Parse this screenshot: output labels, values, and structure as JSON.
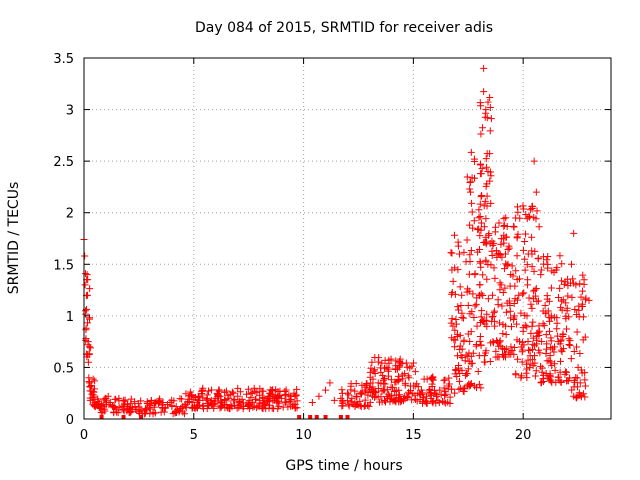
{
  "chart_data": {
    "type": "scatter",
    "title": "Day 084 of 2015, SRMTID for receiver adis",
    "xlabel": "GPS time / hours",
    "ylabel": "SRMTID / TECUs",
    "xlim": [
      0,
      24
    ],
    "ylim": [
      0,
      3.5
    ],
    "xticks": [
      0,
      5,
      10,
      15,
      20
    ],
    "yticks": [
      0,
      0.5,
      1,
      1.5,
      2,
      2.5,
      3,
      3.5
    ],
    "xtick_labels": [
      "0",
      "5",
      "10",
      "15",
      "20"
    ],
    "ytick_labels": [
      "0",
      "0.5",
      "1",
      "1.5",
      "2",
      "2.5",
      "3",
      "3.5"
    ],
    "grid": true,
    "marker": "+",
    "marker_color": "#ff0000",
    "series": [
      {
        "name": "SRMTID",
        "points": [
          [
            0.0,
            1.74
          ],
          [
            0.03,
            1.58
          ],
          [
            0.05,
            1.3
          ],
          [
            0.07,
            1.05
          ],
          [
            0.1,
            0.88
          ],
          [
            0.12,
            1.35
          ],
          [
            0.14,
            1.4
          ],
          [
            0.16,
            1.2
          ],
          [
            0.18,
            0.72
          ],
          [
            0.2,
            0.55
          ],
          [
            0.22,
            0.4
          ],
          [
            0.25,
            0.35
          ],
          [
            0.28,
            0.31
          ],
          [
            0.32,
            0.27
          ],
          [
            0.36,
            0.24
          ],
          [
            0.4,
            0.21
          ],
          [
            0.45,
            0.19
          ],
          [
            0.5,
            0.16
          ],
          [
            0.55,
            0.14
          ],
          [
            0.6,
            0.13
          ],
          [
            0.7,
            0.15
          ],
          [
            0.8,
            0.13
          ],
          [
            0.9,
            0.12
          ],
          [
            1.0,
            0.2
          ],
          [
            1.1,
            0.22
          ],
          [
            1.2,
            0.16
          ],
          [
            1.3,
            0.13
          ],
          [
            1.4,
            0.12
          ],
          [
            1.6,
            0.11
          ],
          [
            1.8,
            0.12
          ],
          [
            2.0,
            0.1
          ],
          [
            2.2,
            0.11
          ],
          [
            2.4,
            0.09
          ],
          [
            2.5,
            0.07
          ],
          [
            2.6,
            0.08
          ],
          [
            2.8,
            0.1
          ],
          [
            3.0,
            0.13
          ],
          [
            3.2,
            0.15
          ],
          [
            3.4,
            0.17
          ],
          [
            3.6,
            0.16
          ],
          [
            3.8,
            0.14
          ],
          [
            4.0,
            0.13
          ],
          [
            4.2,
            0.12
          ],
          [
            4.4,
            0.1
          ],
          [
            4.6,
            0.14
          ],
          [
            4.8,
            0.17
          ],
          [
            5.0,
            0.19
          ],
          [
            5.2,
            0.22
          ],
          [
            5.4,
            0.27
          ],
          [
            5.6,
            0.2
          ],
          [
            5.8,
            0.18
          ],
          [
            6.0,
            0.2
          ],
          [
            6.2,
            0.22
          ],
          [
            6.4,
            0.18
          ],
          [
            6.6,
            0.2
          ],
          [
            6.8,
            0.25
          ],
          [
            7.0,
            0.22
          ],
          [
            7.2,
            0.19
          ],
          [
            7.4,
            0.24
          ],
          [
            7.6,
            0.21
          ],
          [
            7.8,
            0.19
          ],
          [
            8.0,
            0.23
          ],
          [
            8.2,
            0.2
          ],
          [
            8.4,
            0.22
          ],
          [
            8.6,
            0.18
          ],
          [
            8.8,
            0.21
          ],
          [
            9.0,
            0.2
          ],
          [
            9.2,
            0.23
          ],
          [
            9.4,
            0.19
          ],
          [
            9.6,
            0.22
          ],
          [
            10.4,
            0.16
          ],
          [
            10.7,
            0.22
          ],
          [
            11.0,
            0.28
          ],
          [
            11.2,
            0.35
          ],
          [
            11.4,
            0.18
          ],
          [
            11.7,
            0.2
          ],
          [
            12.0,
            0.25
          ],
          [
            12.2,
            0.2
          ],
          [
            12.4,
            0.22
          ],
          [
            12.6,
            0.25
          ],
          [
            12.8,
            0.28
          ],
          [
            13.0,
            0.3
          ],
          [
            13.2,
            0.27
          ],
          [
            13.4,
            0.35
          ],
          [
            13.6,
            0.42
          ],
          [
            13.8,
            0.5
          ],
          [
            14.0,
            0.38
          ],
          [
            14.2,
            0.48
          ],
          [
            14.4,
            0.58
          ],
          [
            14.6,
            0.44
          ],
          [
            14.8,
            0.4
          ],
          [
            15.0,
            0.32
          ],
          [
            15.2,
            0.25
          ],
          [
            15.4,
            0.24
          ],
          [
            15.6,
            0.22
          ],
          [
            15.8,
            0.2
          ],
          [
            16.0,
            0.25
          ],
          [
            16.2,
            0.28
          ],
          [
            16.4,
            0.3
          ],
          [
            16.6,
            0.32
          ],
          [
            16.8,
            0.9
          ],
          [
            17.0,
            0.8
          ],
          [
            17.1,
            1.6
          ],
          [
            17.2,
            1.2
          ],
          [
            17.3,
            0.75
          ],
          [
            17.4,
            0.62
          ],
          [
            17.5,
            1.1
          ],
          [
            17.6,
            2.2
          ],
          [
            17.7,
            1.85
          ],
          [
            17.8,
            1.4
          ],
          [
            17.9,
            0.9
          ],
          [
            18.0,
            1.2
          ],
          [
            18.1,
            1.9
          ],
          [
            18.2,
            3.4
          ],
          [
            18.3,
            3.0
          ],
          [
            18.4,
            2.4
          ],
          [
            18.5,
            1.7
          ],
          [
            18.6,
            1.2
          ],
          [
            18.7,
            0.9
          ],
          [
            18.8,
            1.6
          ],
          [
            18.9,
            1.9
          ],
          [
            19.0,
            1.3
          ],
          [
            19.2,
            0.9
          ],
          [
            19.4,
            1.1
          ],
          [
            19.6,
            1.0
          ],
          [
            19.8,
            1.2
          ],
          [
            20.0,
            0.85
          ],
          [
            20.2,
            1.3
          ],
          [
            20.4,
            1.6
          ],
          [
            20.5,
            2.5
          ],
          [
            20.6,
            2.2
          ],
          [
            20.8,
            1.4
          ],
          [
            21.0,
            1.1
          ],
          [
            21.2,
            0.85
          ],
          [
            21.4,
            0.65
          ],
          [
            21.6,
            0.75
          ],
          [
            21.8,
            0.8
          ],
          [
            22.0,
            1.05
          ],
          [
            22.2,
            1.5
          ],
          [
            22.3,
            1.8
          ],
          [
            22.4,
            1.3
          ],
          [
            22.5,
            0.5
          ],
          [
            22.6,
            0.35
          ],
          [
            22.8,
            0.45
          ],
          [
            23.0,
            1.15
          ]
        ]
      }
    ],
    "clusters": [
      {
        "x": [
          0.0,
          0.3
        ],
        "y": [
          0.6,
          1.45
        ],
        "n": 20
      },
      {
        "x": [
          0.2,
          0.6
        ],
        "y": [
          0.12,
          0.42
        ],
        "n": 18
      },
      {
        "x": [
          0.6,
          2.4
        ],
        "y": [
          0.06,
          0.2
        ],
        "n": 50
      },
      {
        "x": [
          2.4,
          4.6
        ],
        "y": [
          0.05,
          0.2
        ],
        "n": 55
      },
      {
        "x": [
          4.6,
          9.8
        ],
        "y": [
          0.1,
          0.3
        ],
        "n": 200
      },
      {
        "x": [
          11.7,
          13.0
        ],
        "y": [
          0.12,
          0.36
        ],
        "n": 45
      },
      {
        "x": [
          13.0,
          15.1
        ],
        "y": [
          0.16,
          0.6
        ],
        "n": 120
      },
      {
        "x": [
          15.1,
          16.7
        ],
        "y": [
          0.15,
          0.42
        ],
        "n": 55
      },
      {
        "x": [
          16.7,
          17.4
        ],
        "y": [
          0.25,
          1.8
        ],
        "n": 60
      },
      {
        "x": [
          17.4,
          18.1
        ],
        "y": [
          0.3,
          2.6
        ],
        "n": 70
      },
      {
        "x": [
          18.0,
          18.6
        ],
        "y": [
          0.55,
          3.2
        ],
        "n": 80
      },
      {
        "x": [
          18.6,
          19.6
        ],
        "y": [
          0.6,
          2.0
        ],
        "n": 90
      },
      {
        "x": [
          19.6,
          20.8
        ],
        "y": [
          0.4,
          2.1
        ],
        "n": 110
      },
      {
        "x": [
          20.8,
          22.0
        ],
        "y": [
          0.35,
          1.6
        ],
        "n": 100
      },
      {
        "x": [
          22.0,
          22.9
        ],
        "y": [
          0.2,
          1.4
        ],
        "n": 60
      }
    ],
    "floor_points": [
      [
        0.8,
        0.0
      ],
      [
        1.8,
        0.0
      ],
      [
        2.6,
        0.0
      ],
      [
        9.8,
        0.0
      ],
      [
        10.3,
        0.0
      ],
      [
        10.6,
        0.0
      ],
      [
        11.0,
        0.0
      ],
      [
        11.7,
        0.0
      ],
      [
        12.0,
        0.0
      ]
    ]
  }
}
